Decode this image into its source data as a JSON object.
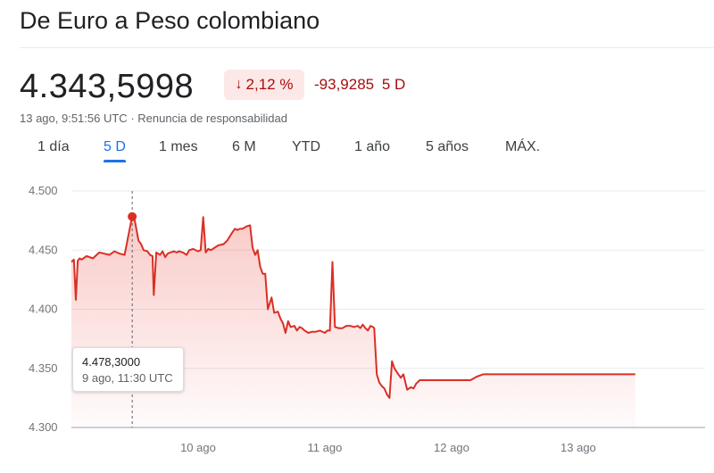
{
  "header": {
    "title": "De Euro a Peso colombiano"
  },
  "quote": {
    "price": "4.343,5998",
    "percent_change": "2,12 %",
    "direction_icon": "arrow-down-icon",
    "abs_change": "-93,9285",
    "period": "5 D",
    "timestamp": "13 ago, 9:51:56 UTC",
    "separator": "·",
    "disclaimer": "Renuncia de responsabilidad",
    "negative_color": "#a50e0e",
    "negative_bg": "#fce8e6"
  },
  "tabs": [
    {
      "label": "1 día",
      "active": false
    },
    {
      "label": "5 D",
      "active": true
    },
    {
      "label": "1 mes",
      "active": false
    },
    {
      "label": "6 M",
      "active": false
    },
    {
      "label": "YTD",
      "active": false
    },
    {
      "label": "1 año",
      "active": false
    },
    {
      "label": "5 años",
      "active": false
    },
    {
      "label": "MÁX.",
      "active": false
    }
  ],
  "tooltip": {
    "value": "4.478,3000",
    "time": "9 ago, 11:30 UTC"
  },
  "chart_data": {
    "type": "line",
    "title": "",
    "xlabel": "",
    "ylabel": "",
    "ylim": [
      4300,
      4500
    ],
    "yticks": [
      4500,
      4450,
      4400,
      4350,
      4300
    ],
    "ytick_labels": [
      "4.500",
      "4.450",
      "4.400",
      "4.350",
      "4.300"
    ],
    "xticks": [
      {
        "label": "10 ago",
        "day": 10
      },
      {
        "label": "11 ago",
        "day": 11
      },
      {
        "label": "12 ago",
        "day": 12
      },
      {
        "label": "13 ago",
        "day": 13
      }
    ],
    "grid": true,
    "line_color": "#d93025",
    "highlight": {
      "day": 9.48,
      "value": 4478.3
    },
    "series": [
      {
        "x": [
          9.0,
          9.02,
          9.035,
          9.05,
          9.065,
          9.08,
          9.12,
          9.17,
          9.22,
          9.26,
          9.3,
          9.34,
          9.38,
          9.42,
          9.46,
          9.48,
          9.5,
          9.53,
          9.55,
          9.57,
          9.6,
          9.62,
          9.64,
          9.65,
          9.67,
          9.7,
          9.72,
          9.74,
          9.76,
          9.78,
          9.81,
          9.83,
          9.85,
          9.88,
          9.91,
          9.93,
          9.96,
          10.0,
          10.02,
          10.04,
          10.06,
          10.08,
          10.1,
          10.13,
          10.16,
          10.2,
          10.23,
          10.27,
          10.29,
          10.31,
          10.33,
          10.35,
          10.38,
          10.41,
          10.43,
          10.45,
          10.47,
          10.49,
          10.51,
          10.53,
          10.55,
          10.58,
          10.6,
          10.63,
          10.65,
          10.67,
          10.69,
          10.71,
          10.73,
          10.76,
          10.78,
          10.8,
          10.82,
          10.84,
          10.87,
          10.9,
          10.93,
          10.96,
          11.0,
          11.02,
          11.04,
          11.06,
          11.08,
          11.11,
          11.14,
          11.17,
          11.2,
          11.23,
          11.26,
          11.28,
          11.3,
          11.32,
          11.34,
          11.36,
          11.38,
          11.39,
          11.41,
          11.43,
          11.45,
          11.47,
          11.49,
          11.51,
          11.53,
          11.55,
          11.58,
          11.6,
          11.62,
          11.65,
          11.68,
          11.7,
          11.72,
          11.75,
          11.78,
          11.82,
          11.86,
          11.9,
          11.95,
          12.05,
          12.15,
          12.2,
          12.25,
          12.3,
          12.5,
          12.7,
          12.9,
          13.1,
          13.3,
          13.45
        ],
        "y": [
          4440,
          4442,
          4408,
          4441,
          4443,
          4442,
          4445,
          4443,
          4448,
          4447,
          4446,
          4449,
          4447,
          4446,
          4468,
          4478.3,
          4475,
          4458,
          4455,
          4450,
          4449,
          4446,
          4445,
          4412,
          4448,
          4446,
          4449,
          4444,
          4447,
          4448,
          4449,
          4448,
          4449,
          4448,
          4446,
          4450,
          4451,
          4449,
          4450,
          4478,
          4448,
          4451,
          4450,
          4452,
          4454,
          4455,
          4458,
          4465,
          4468,
          4467,
          4468,
          4468,
          4470,
          4471,
          4452,
          4446,
          4450,
          4436,
          4430,
          4430,
          4400,
          4410,
          4397,
          4398,
          4392,
          4388,
          4380,
          4390,
          4385,
          4386,
          4382,
          4385,
          4384,
          4382,
          4380,
          4381,
          4381,
          4382,
          4380,
          4382,
          4382,
          4440,
          4385,
          4384,
          4384,
          4386,
          4386,
          4385,
          4386,
          4384,
          4387,
          4384,
          4382,
          4386,
          4385,
          4384,
          4345,
          4338,
          4335,
          4333,
          4328,
          4325,
          4356,
          4350,
          4345,
          4342,
          4345,
          4332,
          4334,
          4333,
          4337,
          4340,
          4340,
          4340,
          4340,
          4340,
          4340,
          4340,
          4340,
          4343,
          4345,
          4345,
          4345,
          4345,
          4345,
          4345,
          4345,
          4345
        ]
      }
    ]
  }
}
